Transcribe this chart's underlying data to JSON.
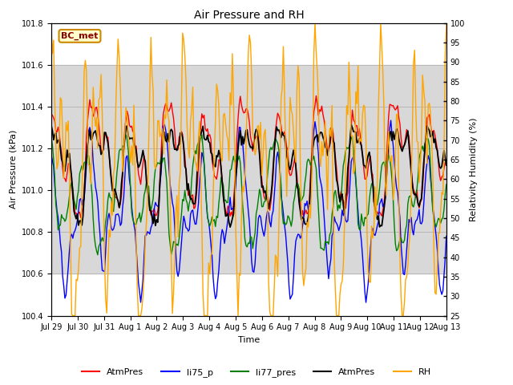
{
  "title": "Air Pressure and RH",
  "xlabel": "Time",
  "ylabel_left": "Air Pressure (kPa)",
  "ylabel_right": "Relativity Humidity (%)",
  "ylim_left": [
    100.4,
    101.8
  ],
  "ylim_right": [
    25,
    100
  ],
  "yticks_left": [
    100.4,
    100.6,
    100.8,
    101.0,
    101.2,
    101.4,
    101.6,
    101.8
  ],
  "yticks_right": [
    25,
    30,
    35,
    40,
    45,
    50,
    55,
    60,
    65,
    70,
    75,
    80,
    85,
    90,
    95,
    100
  ],
  "xtick_labels": [
    "Jul 29",
    "Jul 30",
    "Jul 31",
    "Aug 1",
    "Aug 2",
    "Aug 3",
    "Aug 4",
    "Aug 5",
    "Aug 6",
    "Aug 7",
    "Aug 8",
    "Aug 9",
    "Aug 10",
    "Aug 11",
    "Aug 12",
    "Aug 13"
  ],
  "series_colors": [
    "red",
    "blue",
    "green",
    "black",
    "orange"
  ],
  "series_labels": [
    "AtmPres",
    "li75_p",
    "li77_pres",
    "AtmPres",
    "RH"
  ],
  "label_text": "BC_met",
  "label_facecolor": "#ffffcc",
  "label_edgecolor": "#cc8800",
  "label_textcolor": "#880000",
  "shaded_region": [
    100.6,
    101.6
  ],
  "shaded_color": "#d8d8d8",
  "num_points": 350,
  "seed": 42,
  "figsize": [
    6.4,
    4.8
  ],
  "dpi": 100
}
